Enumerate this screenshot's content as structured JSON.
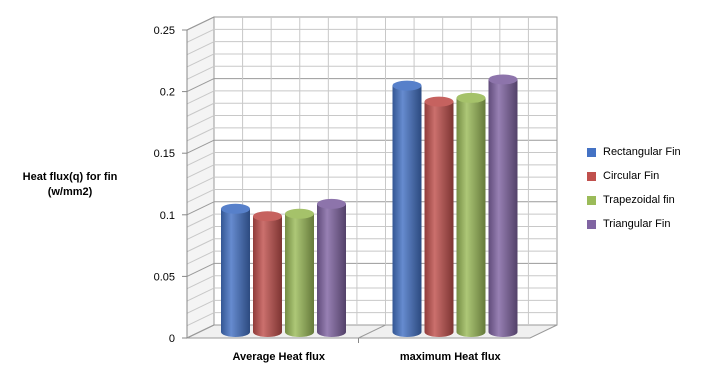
{
  "chart_data": {
    "type": "bar",
    "title": "",
    "xlabel": "",
    "ylabel": "Heat flux(q)  for fin (w/mm2)",
    "ylim": [
      0,
      0.25
    ],
    "yticks": [
      "0",
      "0.05",
      "0.1",
      "0.15",
      "0.2",
      "0.25"
    ],
    "categories": [
      "Average Heat  flux",
      "maximum  Heat flux"
    ],
    "series": [
      {
        "name": "Rectangular Fin",
        "color": "#4472C4",
        "values": [
          0.1,
          0.2
        ]
      },
      {
        "name": "Circular Fin",
        "color": "#C0504D",
        "values": [
          0.094,
          0.187
        ]
      },
      {
        "name": "Trapezoidal fin",
        "color": "#9BBB59",
        "values": [
          0.096,
          0.19
        ]
      },
      {
        "name": "Triangular Fin",
        "color": "#8064A2",
        "values": [
          0.104,
          0.205
        ]
      }
    ],
    "grid": true,
    "legend": "right",
    "style": "3d-cylinder"
  }
}
